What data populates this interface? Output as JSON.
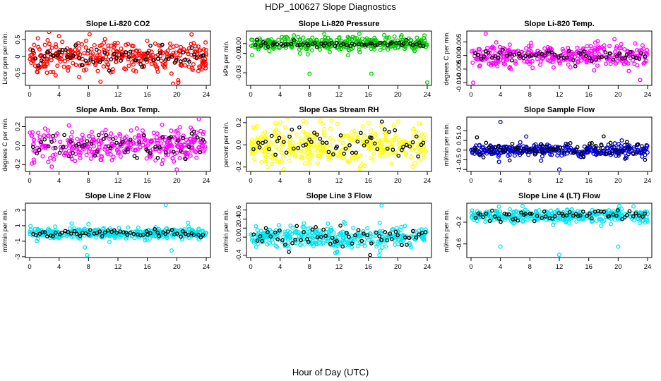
{
  "figure": {
    "title": "HDP_100627  Slope Diagnostics",
    "xlabel": "Hour of Day (UTC)",
    "overlay_color": "#000000"
  },
  "chart_data": [
    {
      "type": "scatter",
      "title": "Slope Li-820 CO2",
      "ylabel": "Licor ppm per min.",
      "xlim": [
        0,
        24
      ],
      "xticks": [
        0,
        4,
        8,
        12,
        16,
        20,
        24
      ],
      "ylim": [
        -0.85,
        0.75
      ],
      "yticks": [
        -0.5,
        0,
        0.5
      ],
      "ytick_labels": [
        "-0.5",
        "0",
        "0.5"
      ],
      "color": "#ff0000",
      "center": 0,
      "spread": 0.22,
      "overlay_spread": 0.15,
      "outliers": [
        [
          4,
          0.6
        ],
        [
          19.5,
          -0.8
        ],
        [
          20.2,
          -0.7
        ],
        [
          22,
          0.65
        ],
        [
          1,
          -0.45
        ]
      ]
    },
    {
      "type": "scatter",
      "title": "Slope Li-820 Pressure",
      "ylabel": "kPa per min.",
      "xlim": [
        0,
        24
      ],
      "xticks": [
        0,
        4,
        8,
        12,
        16,
        20,
        24
      ],
      "ylim": [
        -0.043,
        0.013
      ],
      "yticks": [
        -0.03,
        -0.01,
        0
      ],
      "ytick_labels": [
        "-0.03",
        "-0.01",
        "0.00"
      ],
      "color": "#00cc00",
      "center": 0,
      "spread": 0.004,
      "overlay_spread": 0.0015,
      "outliers": [
        [
          8,
          -0.031
        ],
        [
          16.4,
          -0.031
        ],
        [
          24,
          -0.04
        ],
        [
          10,
          0.01
        ],
        [
          0.2,
          -0.012
        ]
      ]
    },
    {
      "type": "scatter",
      "title": "Slope Li-820 Temp.",
      "ylabel": "degrees C per min.",
      "xlim": [
        0,
        24
      ],
      "xticks": [
        0,
        4,
        8,
        12,
        16,
        20,
        24
      ],
      "ylim": [
        -0.011,
        0.009
      ],
      "yticks": [
        -0.01,
        -0.005,
        0,
        0.005
      ],
      "ytick_labels": [
        "-0.010",
        "-0.005",
        "0.000",
        "0.005"
      ],
      "color": "#ff00ff",
      "center": 0,
      "spread": 0.002,
      "overlay_spread": 0.0012,
      "outliers": [
        [
          0.3,
          -0.01
        ],
        [
          2,
          0.008
        ],
        [
          23,
          -0.009
        ],
        [
          19.5,
          0.006
        ]
      ]
    },
    {
      "type": "scatter",
      "title": "Slope Amb. Box Temp.",
      "ylabel": "degrees C per min.",
      "xlim": [
        0,
        24
      ],
      "xticks": [
        0,
        4,
        8,
        12,
        16,
        20,
        24
      ],
      "ylim": [
        -0.27,
        0.3
      ],
      "yticks": [
        -0.2,
        0,
        0.2
      ],
      "ytick_labels": [
        "-0.2",
        "0.0",
        "0.2"
      ],
      "color": "#ff00ff",
      "center": 0,
      "spread": 0.08,
      "overlay_spread": 0.07,
      "outliers": [
        [
          23,
          0.28
        ],
        [
          20,
          -0.25
        ],
        [
          18,
          0.22
        ],
        [
          3,
          -0.22
        ]
      ]
    },
    {
      "type": "scatter",
      "title": "Slope Gas Stream RH",
      "ylabel": "percent per min.",
      "xlim": [
        0,
        24
      ],
      "xticks": [
        0,
        4,
        8,
        12,
        16,
        20,
        24
      ],
      "ylim": [
        -0.24,
        0.25
      ],
      "yticks": [
        -0.2,
        0,
        0.2
      ],
      "ytick_labels": [
        "-0.2",
        "0.0",
        "0.2"
      ],
      "color": "#ffff00",
      "center": 0,
      "spread": 0.09,
      "overlay_spread": 0.08,
      "outliers": [
        [
          11,
          0.22
        ],
        [
          4.5,
          -0.22
        ],
        [
          22,
          -0.2
        ],
        [
          16,
          0.2
        ]
      ]
    },
    {
      "type": "scatter",
      "title": "Slope Sample Flow",
      "ylabel": "ml/min per min.",
      "xlim": [
        0,
        24
      ],
      "xticks": [
        0,
        4,
        8,
        12,
        16,
        20,
        24
      ],
      "ylim": [
        -1.1,
        1.7
      ],
      "yticks": [
        -1,
        -0.5,
        0,
        0.5,
        1
      ],
      "ytick_labels": [
        "-1",
        "-0.5",
        "0",
        "0.5",
        "1.0"
      ],
      "color": "#0000cc",
      "center": 0,
      "spread": 0.15,
      "overlay_spread": 0.25,
      "outliers": [
        [
          4,
          1.45
        ],
        [
          12,
          -1.0
        ],
        [
          7.5,
          0.7
        ],
        [
          3.8,
          -0.6
        ],
        [
          20.5,
          0.5
        ]
      ]
    },
    {
      "type": "scatter",
      "title": "Slope Line 2 Flow",
      "ylabel": "ml/min per min.",
      "xlim": [
        0,
        24
      ],
      "xticks": [
        0,
        4,
        8,
        12,
        16,
        20,
        24
      ],
      "ylim": [
        -3.1,
        3.9
      ],
      "yticks": [
        -3,
        -1,
        1,
        3
      ],
      "ytick_labels": [
        "-3",
        "-1",
        "1",
        "3"
      ],
      "color": "#00e5ee",
      "center": 0,
      "spread": 0.35,
      "overlay_spread": 0.2,
      "outliers": [
        [
          7.8,
          -2.8
        ],
        [
          18.5,
          3.7
        ],
        [
          19.3,
          -2.2
        ],
        [
          7.5,
          -1.8
        ],
        [
          8,
          1.2
        ]
      ]
    },
    {
      "type": "scatter",
      "title": "Slope Line 3 Flow",
      "ylabel": "ml/min per min.",
      "xlim": [
        0,
        24
      ],
      "xticks": [
        0,
        4,
        8,
        12,
        16,
        20,
        24
      ],
      "ylim": [
        -0.45,
        0.75
      ],
      "yticks": [
        -0.4,
        0,
        0.2,
        0.4,
        0.6
      ],
      "ytick_labels": [
        "-0.4",
        "0.0",
        "0.2",
        "0.4",
        "0.6"
      ],
      "color": "#00e5ee",
      "center": 0,
      "spread": 0.11,
      "overlay_spread": 0.12,
      "outliers": [
        [
          17.8,
          0.7
        ],
        [
          17.5,
          -0.4
        ],
        [
          11.5,
          -0.35
        ],
        [
          10.5,
          0.3
        ]
      ]
    },
    {
      "type": "scatter",
      "title": "Slope Line 4 (LT) Flow",
      "ylabel": "ml/min per min.",
      "xlim": [
        0,
        24
      ],
      "xticks": [
        0,
        4,
        8,
        12,
        16,
        20,
        24
      ],
      "ylim": [
        -0.85,
        0.15
      ],
      "yticks": [
        -0.6,
        -0.2
      ],
      "ytick_labels": [
        "-0.6",
        "-0.2"
      ],
      "color": "#00e5ee",
      "center": -0.08,
      "spread": 0.06,
      "overlay_spread": 0.06,
      "outliers": [
        [
          4,
          -0.65
        ],
        [
          12,
          -0.8
        ],
        [
          20,
          -0.65
        ],
        [
          7,
          0.1
        ]
      ]
    }
  ]
}
